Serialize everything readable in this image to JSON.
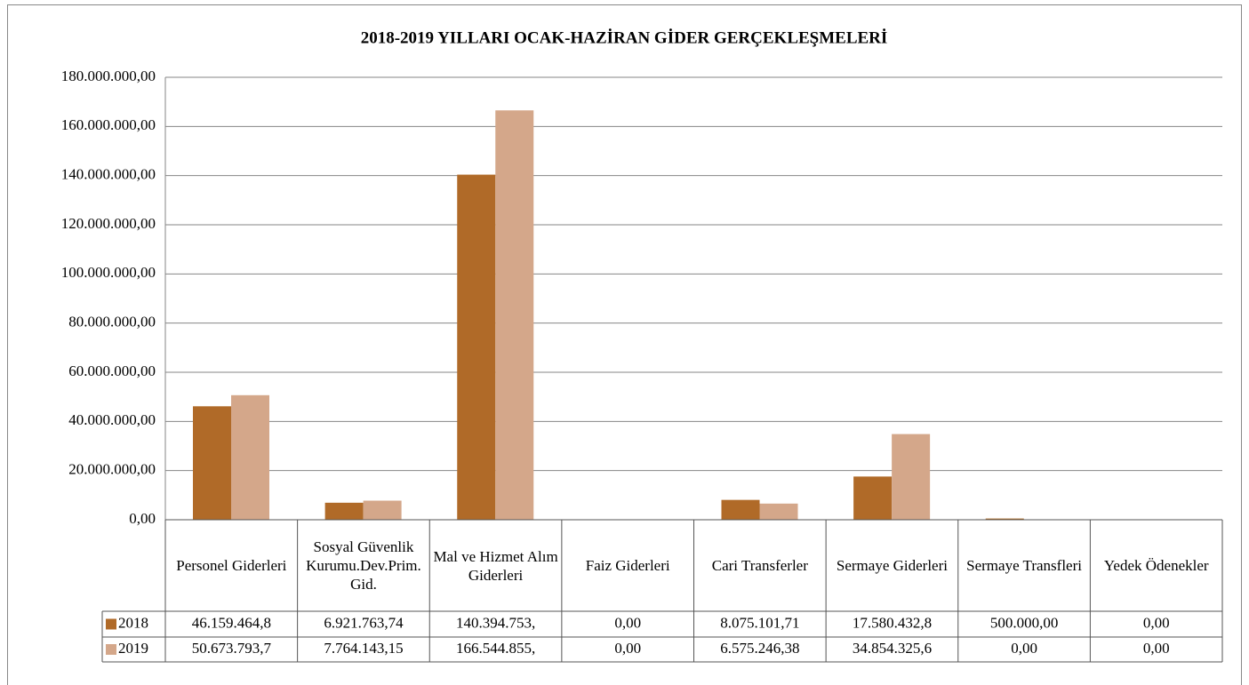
{
  "chart_data": {
    "type": "bar",
    "title": "2018-2019 YILLARI OCAK-HAZİRAN GİDER GERÇEKLEŞMELERİ",
    "categories": [
      "Personel Giderleri",
      "Sosyal Güvenlik Kurumu.Dev.Prim.Gid.",
      "Mal ve Hizmet Alım Giderleri",
      "Faiz Giderleri",
      "Cari Transferler",
      "Sermaye Giderleri",
      "Sermaye Transfleri",
      "Yedek Ödenekler"
    ],
    "series": [
      {
        "name": "2018",
        "color": "#b06a28",
        "values": [
          46159464.8,
          6921763.74,
          140394753,
          0,
          8075101.71,
          17580432.8,
          500000,
          0
        ],
        "value_labels": [
          "46.159.464,8",
          "6.921.763,74",
          "140.394.753,",
          "0,00",
          "8.075.101,71",
          "17.580.432,8",
          "500.000,00",
          "0,00"
        ]
      },
      {
        "name": "2019",
        "color": "#d4a78a",
        "values": [
          50673793.7,
          7764143.15,
          166544855,
          0,
          6575246.38,
          34854325.6,
          0,
          0
        ],
        "value_labels": [
          "50.673.793,7",
          "7.764.143,15",
          "166.544.855,",
          "0,00",
          "6.575.246,38",
          "34.854.325,6",
          "0,00",
          "0,00"
        ]
      }
    ],
    "ylim": [
      0,
      180000000
    ],
    "yticks": [
      {
        "value": 0,
        "label": "0,00"
      },
      {
        "value": 20000000,
        "label": "20.000.000,00"
      },
      {
        "value": 40000000,
        "label": "40.000.000,00"
      },
      {
        "value": 60000000,
        "label": "60.000.000,00"
      },
      {
        "value": 80000000,
        "label": "80.000.000,00"
      },
      {
        "value": 100000000,
        "label": "100.000.000,00"
      },
      {
        "value": 120000000,
        "label": "120.000.000,00"
      },
      {
        "value": 140000000,
        "label": "140.000.000,00"
      },
      {
        "value": 160000000,
        "label": "160.000.000,00"
      },
      {
        "value": 180000000,
        "label": "180.000.000,00"
      }
    ],
    "grid": true
  }
}
